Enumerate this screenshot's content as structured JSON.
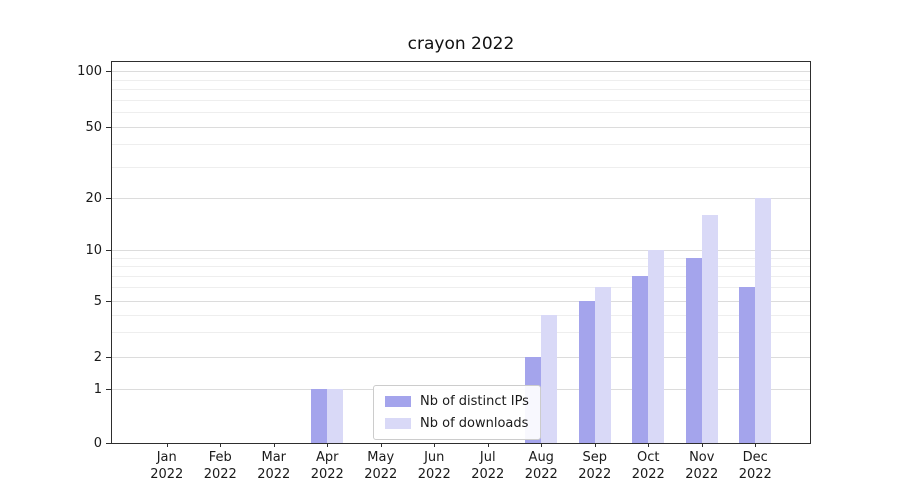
{
  "title": "crayon 2022",
  "legend": {
    "position": "lower center",
    "items": [
      {
        "label": "Nb of distinct IPs",
        "color": "#a4a4ec"
      },
      {
        "label": "Nb of downloads",
        "color": "#d9d9f7"
      }
    ]
  },
  "chart_data": {
    "type": "bar",
    "title": "crayon 2022",
    "categories": [
      "Jan 2022",
      "Feb 2022",
      "Mar 2022",
      "Apr 2022",
      "May 2022",
      "Jun 2022",
      "Jul 2022",
      "Aug 2022",
      "Sep 2022",
      "Oct 2022",
      "Nov 2022",
      "Dec 2022"
    ],
    "months": [
      "Jan",
      "Feb",
      "Mar",
      "Apr",
      "May",
      "Jun",
      "Jul",
      "Aug",
      "Sep",
      "Oct",
      "Nov",
      "Dec"
    ],
    "year": "2022",
    "series": [
      {
        "name": "Nb of distinct IPs",
        "color": "#a4a4ec",
        "values": [
          0,
          0,
          0,
          1,
          0,
          0,
          0,
          2,
          5,
          7,
          9,
          6
        ]
      },
      {
        "name": "Nb of downloads",
        "color": "#d9d9f7",
        "values": [
          0,
          0,
          0,
          1,
          0,
          0,
          0,
          4,
          6,
          10,
          16,
          20
        ]
      }
    ],
    "xlabel": "",
    "ylabel": "",
    "yscale": "symlog",
    "yticks": [
      0,
      1,
      2,
      5,
      10,
      20,
      50,
      100
    ],
    "minor_yticks": [
      3,
      4,
      6,
      7,
      8,
      9,
      30,
      40,
      60,
      70,
      80,
      90
    ],
    "ylim": [
      0,
      105
    ],
    "grid": true,
    "legend_position": "lower center"
  }
}
